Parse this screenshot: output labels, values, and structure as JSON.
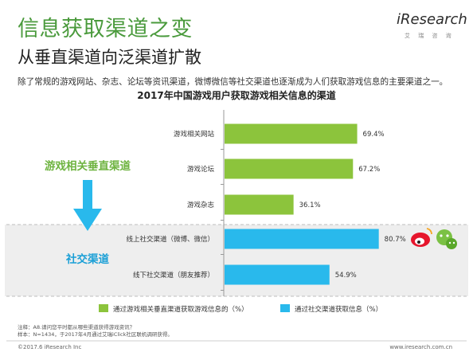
{
  "header": {
    "headline": "信息获取渠道之变",
    "subhead": "从垂直渠道向泛渠道扩散",
    "lead": "除了常规的游戏网站、杂志、论坛等资讯渠道，微博微信等社交渠道也逐渐成为人们获取游戏信息的主要渠道之一。"
  },
  "brand": {
    "name": "iResearch",
    "sub": "艾 瑞 咨 询"
  },
  "side_labels": {
    "vertical": "游戏相关垂直渠道",
    "social": "社交渠道"
  },
  "colors": {
    "vertical_bar": "#8cc43c",
    "social_bar": "#29b9ec",
    "headline": "#4a9a3c",
    "social_band": "#eeeeee",
    "arrow": "#29b9ec"
  },
  "icons": [
    "weibo-icon",
    "wechat-icon"
  ],
  "chart_data": {
    "type": "bar",
    "orientation": "horizontal",
    "title": "2017年中国游戏用户获取游戏相关信息的渠道",
    "categories": [
      "游戏相关网站",
      "游戏论坛",
      "游戏杂志",
      "线上社交渠道（微博、微信）",
      "线下社交渠道（朋友推荐）"
    ],
    "values": [
      69.4,
      67.2,
      36.1,
      80.7,
      54.9
    ],
    "value_labels": [
      "69.4%",
      "67.2%",
      "36.1%",
      "80.7%",
      "54.9%"
    ],
    "series_membership": [
      0,
      0,
      0,
      1,
      1
    ],
    "series": [
      {
        "name": "通过游戏相关垂直渠道获取游戏信息的（%）",
        "color": "#8cc43c"
      },
      {
        "name": "通过社交渠道获取信息（%）",
        "color": "#29b9ec"
      }
    ],
    "xlim": [
      0,
      100
    ],
    "legend": "bottom",
    "grid": false
  },
  "notes": {
    "source": "注释：A8.请问您平时都从哪些渠道获得游戏资讯？",
    "sample": "样本：N=1434，于2017年4月通过艾瑞iClick社区联机调研获得。",
    "copyright": "©2017.6 iResearch Inc",
    "url": "www.iresearch.com.cn"
  }
}
